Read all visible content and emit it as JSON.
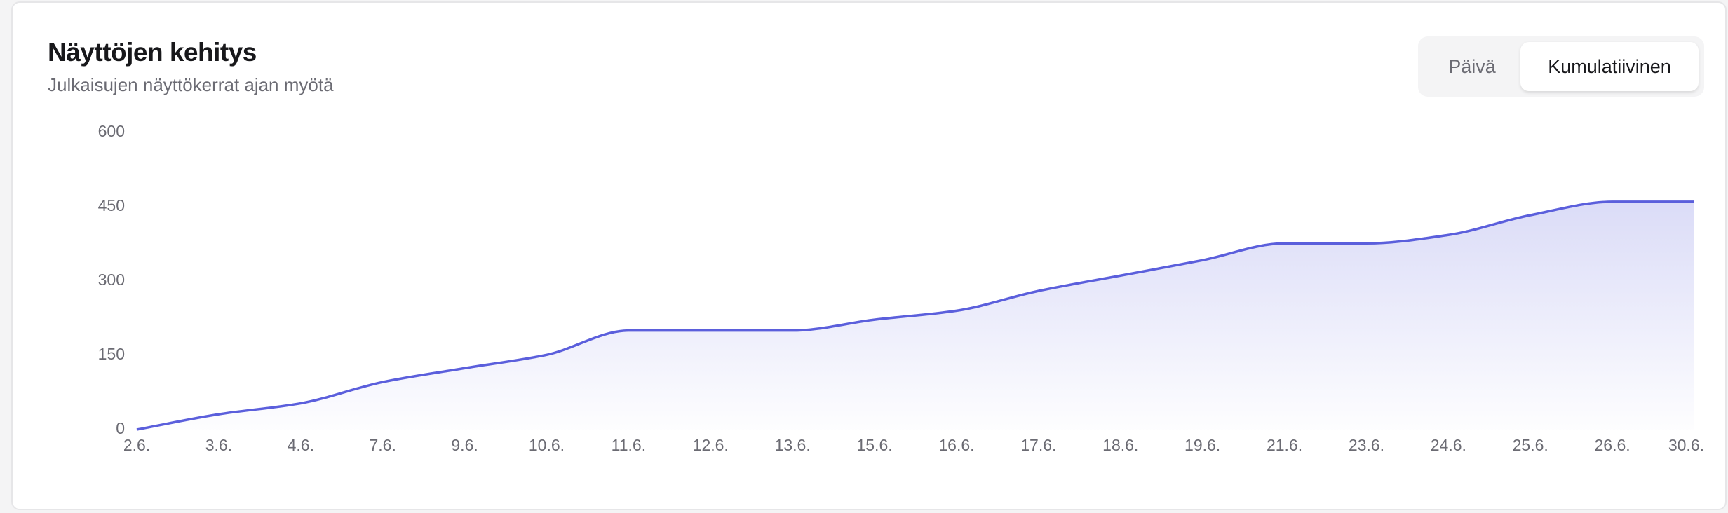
{
  "header": {
    "title": "Näyttöjen kehitys",
    "subtitle": "Julkaisujen näyttökerrat ajan myötä"
  },
  "toggle": {
    "options": [
      "Päivä",
      "Kumulatiivinen"
    ],
    "active": 1
  },
  "chart_data": {
    "type": "line",
    "categories": [
      "2.6.",
      "3.6.",
      "4.6.",
      "7.6.",
      "9.6.",
      "10.6.",
      "11.6.",
      "12.6.",
      "13.6.",
      "15.6.",
      "16.6.",
      "17.6.",
      "18.6.",
      "19.6.",
      "21.6.",
      "23.6.",
      "24.6.",
      "25.6.",
      "26.6.",
      "30.6."
    ],
    "series": [
      {
        "color": "#5b5fdc",
        "values": [
          0,
          31,
          53,
          96,
          124,
          151,
          200,
          200,
          200,
          222,
          240,
          280,
          311,
          342,
          376,
          376,
          393,
          433,
          460,
          460
        ]
      }
    ],
    "ylim": [
      0,
      600
    ],
    "yticks": [
      0,
      150,
      300,
      450,
      600
    ],
    "grid": false,
    "area": true
  }
}
